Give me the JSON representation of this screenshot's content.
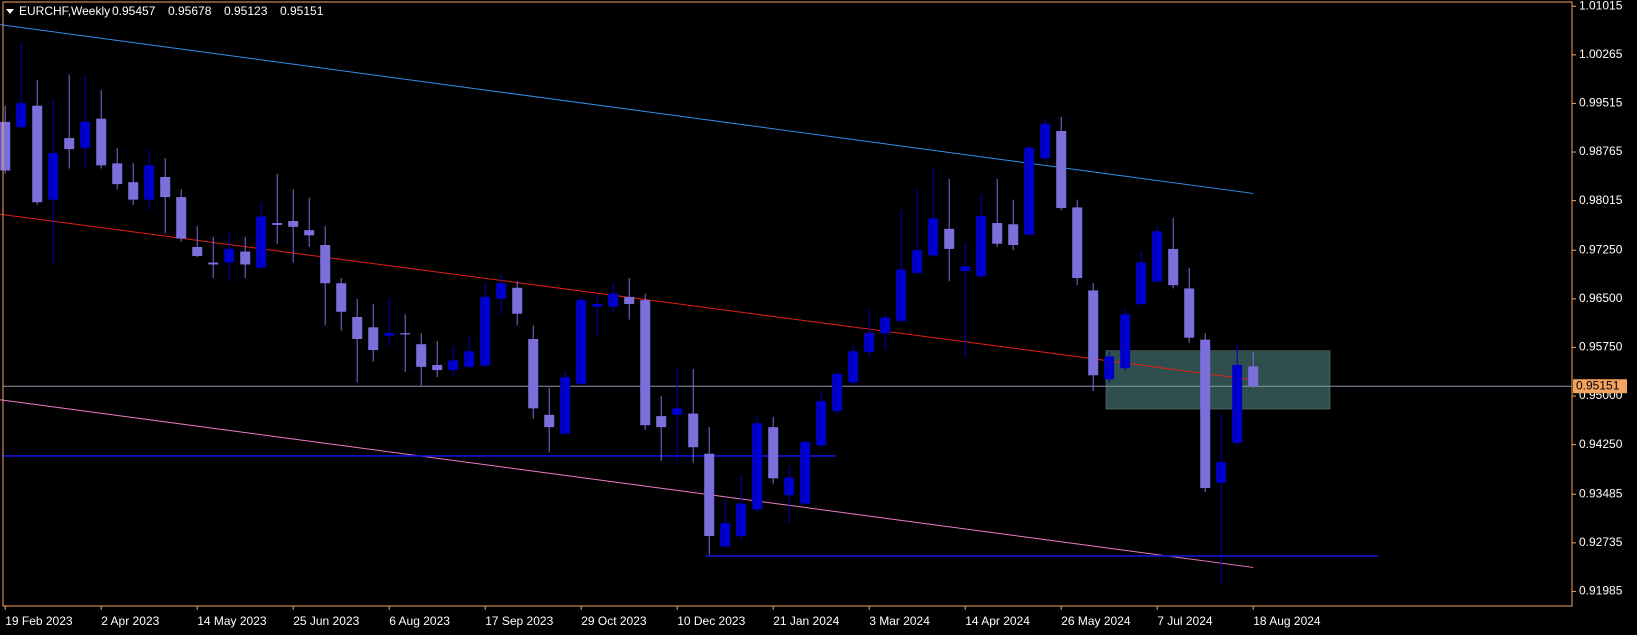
{
  "chart_data": {
    "type": "candlestick",
    "title": "EURCHF,Weekly",
    "categories": [
      "19 Feb 2023",
      null,
      null,
      null,
      null,
      null,
      "2 Apr 2023",
      null,
      null,
      null,
      null,
      null,
      "14 May 2023",
      null,
      null,
      null,
      null,
      null,
      "25 Jun 2023",
      null,
      null,
      null,
      null,
      null,
      "6 Aug 2023",
      null,
      null,
      null,
      null,
      null,
      "17 Sep 2023",
      null,
      null,
      null,
      null,
      null,
      "29 Oct 2023",
      null,
      null,
      null,
      null,
      null,
      "10 Dec 2023",
      null,
      null,
      null,
      null,
      null,
      "21 Jan 2024",
      null,
      null,
      null,
      null,
      null,
      "3 Mar 2024",
      null,
      null,
      null,
      null,
      null,
      "14 Apr 2024",
      null,
      null,
      null,
      null,
      null,
      "26 May 2024",
      null,
      null,
      null,
      null,
      null,
      "7 Jul 2024",
      null,
      null,
      null,
      null,
      null,
      "18 Aug 2024"
    ],
    "open": [
      0.9923,
      0.9915,
      0.9948,
      0.9803,
      0.9898,
      0.9883,
      0.9928,
      0.9859,
      0.983,
      0.9803,
      0.9838,
      0.9807,
      0.973,
      0.9706,
      0.9706,
      0.9723,
      0.9698,
      0.9767,
      0.977,
      0.9756,
      0.9733,
      0.9674,
      0.9622,
      0.9606,
      0.9593,
      0.9597,
      0.958,
      0.9548,
      0.954,
      0.9545,
      0.9547,
      0.965,
      0.9667,
      0.9588,
      0.9471,
      0.9442,
      0.9519,
      0.9638,
      0.9638,
      0.9653,
      0.9648,
      0.9469,
      0.9471,
      0.9473,
      0.9411,
      0.9268,
      0.9284,
      0.9325,
      0.9452,
      0.9347,
      0.9334,
      0.9424,
      0.9477,
      0.9521,
      0.9568,
      0.9597,
      0.9616,
      0.969,
      0.9717,
      0.9758,
      0.9693,
      0.9685,
      0.9767,
      0.9765,
      0.9749,
      0.9867,
      0.9909,
      0.9791,
      0.9663,
      0.9526,
      0.9543,
      0.9642,
      0.9677,
      0.9727,
      0.9666,
      0.9587,
      0.9366,
      0.9428,
      0.95457
    ],
    "high": [
      0.9948,
      1.0044,
      0.9988,
      0.9956,
      0.9996,
      0.9993,
      0.9972,
      0.9883,
      0.9859,
      0.988,
      0.9867,
      0.9819,
      0.9762,
      0.9746,
      0.9754,
      0.9746,
      0.9798,
      0.9843,
      0.9819,
      0.9806,
      0.9762,
      0.9682,
      0.965,
      0.9642,
      0.965,
      0.9626,
      0.9597,
      0.9585,
      0.9577,
      0.9593,
      0.9674,
      0.9687,
      0.9677,
      0.9609,
      0.9513,
      0.9537,
      0.9653,
      0.9658,
      0.9674,
      0.9682,
      0.9658,
      0.95,
      0.9545,
      0.9542,
      0.9452,
      0.9339,
      0.9376,
      0.9469,
      0.9468,
      0.9392,
      0.9432,
      0.9508,
      0.9537,
      0.9577,
      0.9634,
      0.9626,
      0.9787,
      0.9819,
      0.9851,
      0.9835,
      0.9735,
      0.9811,
      0.9835,
      0.9803,
      0.9886,
      0.9928,
      0.9931,
      0.9803,
      0.9674,
      0.9569,
      0.9634,
      0.9722,
      0.9762,
      0.9775,
      0.9698,
      0.9597,
      0.9473,
      0.958,
      0.95678
    ],
    "low": [
      0.9843,
      0.9912,
      0.9795,
      0.9703,
      0.9851,
      0.9851,
      0.9851,
      0.9819,
      0.9795,
      0.9787,
      0.9751,
      0.9738,
      0.9714,
      0.9682,
      0.9677,
      0.9682,
      0.9698,
      0.9735,
      0.9706,
      0.973,
      0.9609,
      0.9601,
      0.9521,
      0.9553,
      0.9577,
      0.9537,
      0.9516,
      0.9529,
      0.9529,
      0.9542,
      0.9545,
      0.9626,
      0.9609,
      0.9465,
      0.9413,
      0.9439,
      0.9516,
      0.9593,
      0.9629,
      0.9618,
      0.9448,
      0.94,
      0.94,
      0.9397,
      0.9255,
      0.9266,
      0.9279,
      0.932,
      0.9365,
      0.9304,
      0.9331,
      0.9421,
      0.9473,
      0.9518,
      0.9561,
      0.9572,
      0.9613,
      0.9687,
      0.9714,
      0.9677,
      0.9561,
      0.9682,
      0.973,
      0.9725,
      0.9748,
      0.9864,
      0.9787,
      0.9671,
      0.9508,
      0.9521,
      0.954,
      0.9638,
      0.9674,
      0.9666,
      0.9582,
      0.9352,
      0.921,
      0.9424,
      0.95123
    ],
    "close": [
      0.9848,
      0.9952,
      0.9799,
      0.9875,
      0.9881,
      0.9923,
      0.9856,
      0.9827,
      0.9803,
      0.9856,
      0.9807,
      0.9743,
      0.9716,
      0.9703,
      0.9727,
      0.9703,
      0.9777,
      0.9764,
      0.9761,
      0.9748,
      0.9674,
      0.963,
      0.9588,
      0.9571,
      0.9597,
      0.9595,
      0.9545,
      0.954,
      0.9555,
      0.9569,
      0.9653,
      0.9674,
      0.9627,
      0.9481,
      0.9452,
      0.9529,
      0.9648,
      0.9642,
      0.9658,
      0.9642,
      0.9455,
      0.9452,
      0.9481,
      0.9421,
      0.9284,
      0.9304,
      0.9334,
      0.9458,
      0.9373,
      0.9374,
      0.9429,
      0.9492,
      0.9534,
      0.9569,
      0.9597,
      0.9621,
      0.9695,
      0.9725,
      0.9774,
      0.9727,
      0.97,
      0.9778,
      0.9735,
      0.9733,
      0.9883,
      0.992,
      0.979,
      0.9682,
      0.9532,
      0.9561,
      0.9626,
      0.9706,
      0.9754,
      0.9671,
      0.959,
      0.9358,
      0.9398,
      0.9548,
      0.95151
    ],
    "up_color": "#0000cd",
    "down_color": "#7b6fdb",
    "ylim": [
      0.9176,
      1.0108
    ],
    "yticks": [
      1.01015,
      1.00265,
      0.99515,
      0.98765,
      0.98015,
      {
        "value": 0.9725,
        "label": "0.97250"
      },
      {
        "value": 0.965,
        "label": "0.96500"
      },
      {
        "value": 0.9575,
        "label": "0.95750"
      },
      {
        "value": 0.95,
        "label": "0.95000"
      },
      {
        "value": 0.9425,
        "label": "0.94250"
      },
      0.93485,
      0.92735,
      0.91985
    ],
    "lines": [
      {
        "color": "#2f8fea",
        "values": [
          1.00731,
          0.98126
        ]
      },
      {
        "color": "#e0201b",
        "values": [
          0.97805,
          0.95249
        ]
      },
      {
        "color": "#f07ac8",
        "values": [
          0.94943,
          0.92355
        ]
      }
    ],
    "levels": {
      "color": "#1414d8",
      "values": [
        0.94075,
        0.92532
      ]
    },
    "zone": {
      "color": "#2f4f4f",
      "values": [
        0.94799,
        0.95699
      ]
    },
    "price_line_color": "#8a98a8",
    "axis_color": "#f4a460"
  }
}
